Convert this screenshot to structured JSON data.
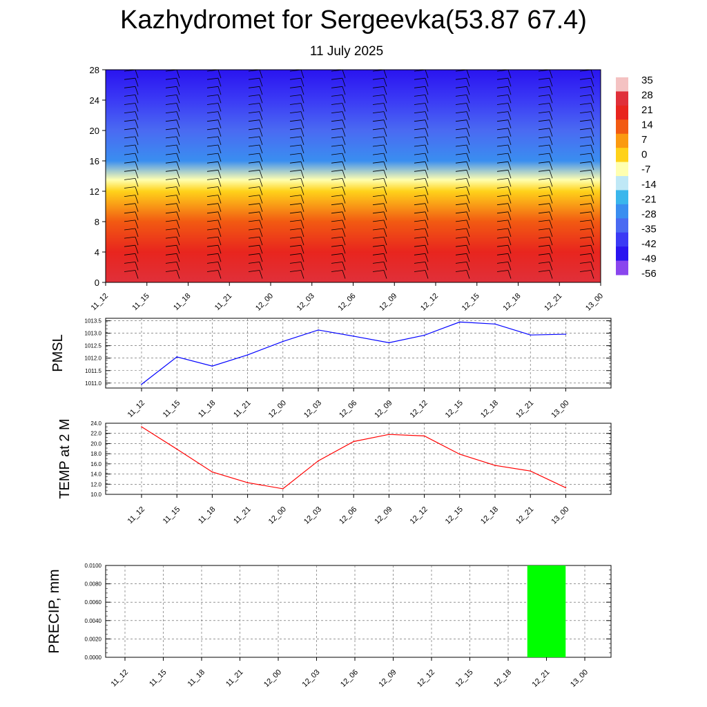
{
  "header": {
    "title": "Kazhydromet for Sergeevka(53.87 67.4)",
    "subtitle": "11 July 2025"
  },
  "chart_data": [
    {
      "type": "heatmap",
      "title": "",
      "xlabel": "",
      "ylabel": "",
      "x_ticks": [
        "11_12",
        "11_15",
        "11_18",
        "11_21",
        "12_00",
        "12_03",
        "12_06",
        "12_09",
        "12_12",
        "12_15",
        "12_18",
        "12_21",
        "13_00"
      ],
      "y_ticks": [
        0,
        4,
        8,
        12,
        16,
        20,
        24,
        28
      ],
      "ylim": [
        0,
        28
      ],
      "colorbar_labels": [
        "35",
        "28",
        "21",
        "14",
        "7",
        "0",
        "-7",
        "-14",
        "-21",
        "-28",
        "-35",
        "-42",
        "-49",
        "-56"
      ],
      "colorscale": [
        {
          "value": 35,
          "color": "#f4c2c2"
        },
        {
          "value": 28,
          "color": "#e0303a"
        },
        {
          "value": 21,
          "color": "#e8251e"
        },
        {
          "value": 14,
          "color": "#f25a12"
        },
        {
          "value": 7,
          "color": "#fb9a10"
        },
        {
          "value": 0,
          "color": "#ffd21a"
        },
        {
          "value": -7,
          "color": "#ffffb0"
        },
        {
          "value": -14,
          "color": "#bfe8f6"
        },
        {
          "value": -21,
          "color": "#3ab6ec"
        },
        {
          "value": -28,
          "color": "#3a8ef0"
        },
        {
          "value": -35,
          "color": "#4a6af2"
        },
        {
          "value": -42,
          "color": "#3b3af5"
        },
        {
          "value": -49,
          "color": "#2a14f0"
        },
        {
          "value": -56,
          "color": "#8a46ee"
        }
      ],
      "temperature_profile_by_level": [
        {
          "level": 0,
          "value": 23
        },
        {
          "level": 4,
          "value": 17
        },
        {
          "level": 8,
          "value": 8
        },
        {
          "level": 12,
          "value": 0
        },
        {
          "level": 13.5,
          "value": -9
        },
        {
          "level": 16,
          "value": -30
        },
        {
          "level": 20,
          "value": -40
        },
        {
          "level": 24,
          "value": -47
        },
        {
          "level": 28,
          "value": -50
        }
      ],
      "wind_barbs": "present at every time and level (black wind barbs)"
    },
    {
      "type": "line",
      "ylabel": "PMSL",
      "x": [
        "11_12",
        "11_15",
        "11_18",
        "11_21",
        "12_00",
        "12_03",
        "12_06",
        "12_09",
        "12_12",
        "12_15",
        "12_18",
        "12_21",
        "13_00"
      ],
      "series": [
        {
          "color": "#0000ff",
          "values": [
            1010.95,
            1012.05,
            1011.68,
            1012.13,
            1012.67,
            1013.13,
            1012.88,
            1012.62,
            1012.92,
            1013.45,
            1013.37,
            1012.93,
            1012.96
          ]
        }
      ],
      "ylim": [
        1010.8,
        1013.6
      ],
      "y_ticks": [
        "1011.0",
        "1011.5",
        "1012.0",
        "1012.5",
        "1013.0",
        "1013.5"
      ],
      "grid": true
    },
    {
      "type": "line",
      "ylabel": "TEMP at 2 M",
      "x": [
        "11_12",
        "11_15",
        "11_18",
        "11_21",
        "12_00",
        "12_03",
        "12_06",
        "12_09",
        "12_12",
        "12_15",
        "12_18",
        "12_21",
        "13_00"
      ],
      "series": [
        {
          "color": "#ff0000",
          "values": [
            23.3,
            18.9,
            14.4,
            12.3,
            11.1,
            16.6,
            20.4,
            21.8,
            21.5,
            17.9,
            15.7,
            14.6,
            11.3
          ]
        }
      ],
      "ylim": [
        10.0,
        24.0
      ],
      "y_ticks": [
        "10.0",
        "12.0",
        "14.0",
        "16.0",
        "18.0",
        "20.0",
        "22.0",
        "24.0"
      ],
      "grid": true
    },
    {
      "type": "bar",
      "ylabel": "PRECIP, mm",
      "categories": [
        "11_12",
        "11_15",
        "11_18",
        "11_21",
        "12_00",
        "12_03",
        "12_06",
        "12_09",
        "12_12",
        "12_15",
        "12_18",
        "12_21",
        "13_00"
      ],
      "series": [
        {
          "color": "#00ff00",
          "values": [
            0,
            0,
            0,
            0,
            0,
            0,
            0,
            0,
            0,
            0,
            0,
            0.01,
            0
          ]
        }
      ],
      "ylim": [
        0,
        0.01
      ],
      "y_ticks": [
        "0.0000",
        "0.0020",
        "0.0040",
        "0.0060",
        "0.0080",
        "0.0100"
      ],
      "grid": true
    }
  ]
}
